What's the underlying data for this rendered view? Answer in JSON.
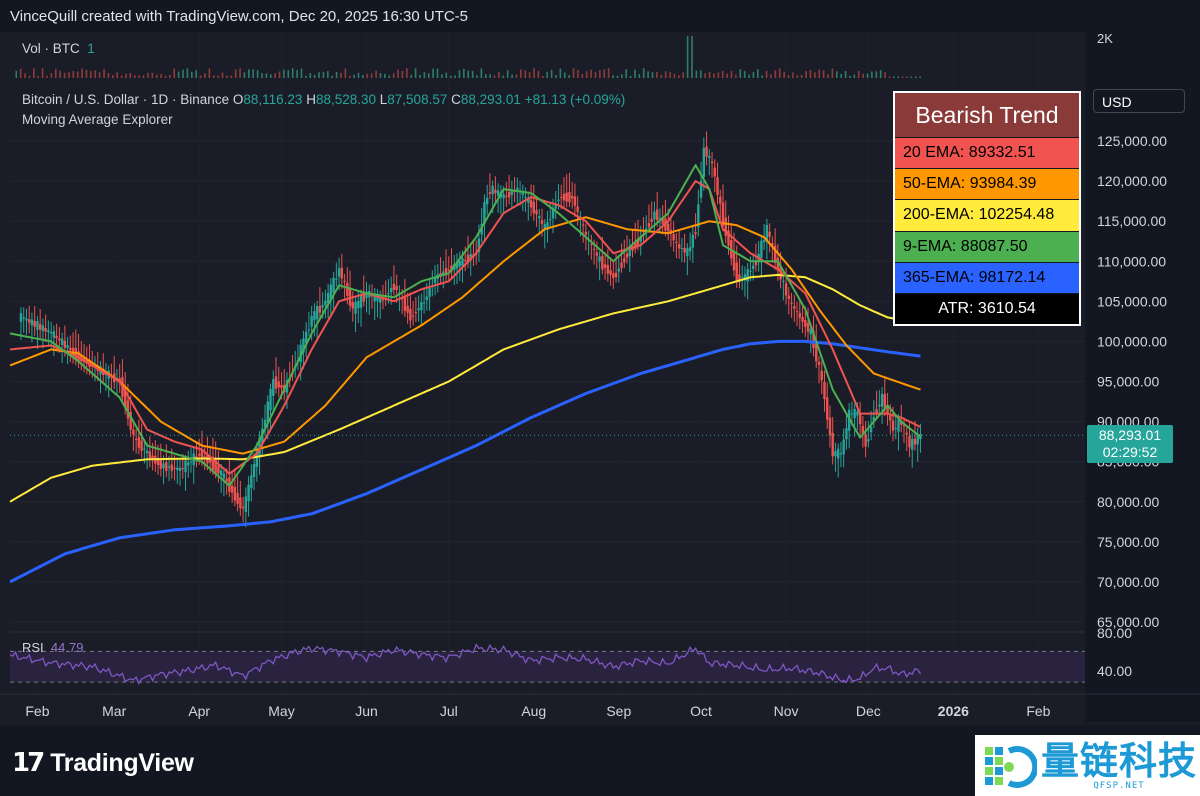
{
  "header": {
    "title": "VinceQuill created with TradingView.com, Dec 20, 2025 16:30 UTC-5"
  },
  "volume_legend": {
    "label": "Vol · BTC",
    "value": "1",
    "axis_label": "2K"
  },
  "symbol_legend": {
    "name": "Bitcoin / U.S. Dollar · 1D · Binance",
    "open_label": "O",
    "open": "88,116.23",
    "high_label": "H",
    "high": "88,528.30",
    "low_label": "L",
    "low": "87,508.57",
    "close_label": "C",
    "close": "88,293.01",
    "change": "+81.13 (+0.09%)",
    "indicator": "Moving Average Explorer"
  },
  "currency_button": "USD",
  "current_price": {
    "price": "88,293.01",
    "countdown": "02:29:52",
    "value": 88293.01
  },
  "ema_table": {
    "title": "Bearish Trend",
    "rows": [
      {
        "text": "20 EMA: 89332.51",
        "color": "#f05350"
      },
      {
        "text": "50-EMA: 93984.39",
        "color": "#ff9800"
      },
      {
        "text": "200-EMA: 102254.48",
        "color": "#ffeb3b"
      },
      {
        "text": "9-EMA: 88087.50",
        "color": "#4caf50"
      },
      {
        "text": "365-EMA: 98172.14",
        "color": "#2962ff"
      }
    ],
    "atr": "ATR: 3610.54",
    "title_color": "#8b3a3a",
    "atr_color": "#000000"
  },
  "rsi": {
    "label": "RSI",
    "value": "44.79",
    "ticks": [
      "80.00",
      "40.00"
    ],
    "color": "#7e57c2"
  },
  "branding": {
    "logo_text": "TradingView",
    "watermark_cn": "量链科技",
    "watermark_url": "QFSP.NET"
  },
  "chart_data": {
    "type": "line",
    "title": "",
    "ylabel": "",
    "ylim": [
      63000,
      128000
    ],
    "y_ticks": [
      65000,
      70000,
      75000,
      80000,
      85000,
      90000,
      95000,
      100000,
      105000,
      110000,
      115000,
      120000,
      125000
    ],
    "y_tick_labels": [
      "65,000.00",
      "70,000.00",
      "75,000.00",
      "80,000.00",
      "85,000.00",
      "90,000.00",
      "95,000.00",
      "100,000.00",
      "105,000.00",
      "110,000.00",
      "115,000.00",
      "120,000.00",
      "125,000.00"
    ],
    "x_months": [
      "Feb",
      "Mar",
      "Apr",
      "May",
      "Jun",
      "Jul",
      "Aug",
      "Sep",
      "Oct",
      "Nov",
      "Dec",
      "2026",
      "Feb"
    ],
    "x_month_days": [
      0,
      28,
      59,
      89,
      120,
      150,
      181,
      212,
      242,
      273,
      303,
      334,
      365
    ],
    "x_range_days": [
      -10,
      382
    ],
    "last_day": 322,
    "price": {
      "days": [
        -6,
        5,
        15,
        22,
        30,
        35,
        40,
        45,
        52,
        59,
        63,
        68,
        75,
        80,
        86,
        90,
        95,
        100,
        105,
        110,
        115,
        120,
        125,
        130,
        136,
        141,
        145,
        150,
        155,
        160,
        163,
        165,
        170,
        175,
        180,
        185,
        190,
        195,
        200,
        205,
        210,
        215,
        220,
        225,
        230,
        233,
        237,
        240,
        243,
        246,
        250,
        255,
        258,
        262,
        266,
        270,
        274,
        278,
        282,
        286,
        290,
        293,
        296,
        299,
        302,
        305,
        308,
        312,
        315,
        318,
        322
      ],
      "values": [
        103000,
        101000,
        98000,
        96500,
        95000,
        88000,
        86000,
        84500,
        84000,
        86000,
        85000,
        83000,
        79000,
        86000,
        95000,
        94000,
        98000,
        103000,
        105000,
        109000,
        104000,
        106000,
        105000,
        107000,
        103000,
        105000,
        108000,
        109000,
        110000,
        111000,
        117000,
        119000,
        118000,
        119000,
        117000,
        114000,
        118000,
        118000,
        113000,
        110000,
        108000,
        111000,
        113000,
        116000,
        114000,
        112000,
        111000,
        114000,
        124000,
        122000,
        115000,
        108000,
        108000,
        110000,
        114000,
        109000,
        105000,
        103000,
        101000,
        95000,
        86000,
        86000,
        91000,
        91000,
        87000,
        91000,
        93000,
        89000,
        90000,
        87000,
        88293
      ]
    },
    "series": [
      {
        "name": "365-EMA",
        "color": "#2962ff",
        "days": [
          -10,
          10,
          30,
          50,
          70,
          85,
          100,
          120,
          140,
          160,
          180,
          200,
          220,
          235,
          250,
          260,
          270,
          280,
          290,
          300,
          310,
          322
        ],
        "values": [
          70000,
          73500,
          75500,
          76500,
          77000,
          77500,
          78500,
          81000,
          84000,
          87000,
          90500,
          93500,
          96000,
          97500,
          99000,
          99700,
          100000,
          100000,
          99700,
          99200,
          98700,
          98172
        ]
      },
      {
        "name": "200-EMA",
        "color": "#ffeb3b",
        "days": [
          -10,
          5,
          20,
          40,
          60,
          75,
          90,
          110,
          130,
          150,
          170,
          190,
          210,
          230,
          245,
          260,
          270,
          280,
          290,
          300,
          310,
          322
        ],
        "values": [
          80000,
          83000,
          84500,
          85300,
          85400,
          85300,
          86200,
          89000,
          92000,
          95000,
          99000,
          101500,
          103500,
          105000,
          106500,
          108000,
          108300,
          108000,
          106500,
          104500,
          103000,
          102254
        ]
      },
      {
        "name": "50-EMA",
        "color": "#ff9800",
        "days": [
          -10,
          5,
          15,
          30,
          45,
          60,
          75,
          90,
          105,
          120,
          140,
          155,
          170,
          185,
          200,
          215,
          230,
          245,
          255,
          265,
          275,
          285,
          295,
          305,
          315,
          322
        ],
        "values": [
          97000,
          99000,
          98500,
          95000,
          90000,
          87000,
          86000,
          87500,
          92000,
          98000,
          102000,
          105500,
          110000,
          114000,
          115500,
          114000,
          113500,
          115000,
          114500,
          113000,
          109000,
          104000,
          99500,
          96000,
          94800,
          93984
        ]
      },
      {
        "name": "20 EMA",
        "color": "#f05350",
        "days": [
          -10,
          5,
          15,
          30,
          40,
          50,
          60,
          70,
          80,
          90,
          100,
          110,
          120,
          130,
          140,
          150,
          160,
          170,
          180,
          190,
          200,
          210,
          220,
          230,
          240,
          245,
          250,
          260,
          270,
          280,
          290,
          300,
          310,
          315,
          322
        ],
        "values": [
          99000,
          99500,
          98000,
          95000,
          89000,
          87500,
          86500,
          83500,
          86000,
          92000,
          99000,
          105000,
          106000,
          105000,
          106500,
          107500,
          111000,
          116000,
          118000,
          117000,
          115000,
          111000,
          112000,
          115000,
          120000,
          119000,
          114000,
          111000,
          109000,
          106000,
          99000,
          91000,
          91000,
          90500,
          89332
        ]
      },
      {
        "name": "9-EMA",
        "color": "#4caf50",
        "days": [
          -10,
          5,
          15,
          30,
          40,
          50,
          60,
          70,
          80,
          90,
          100,
          110,
          120,
          130,
          140,
          150,
          160,
          170,
          180,
          190,
          200,
          210,
          220,
          230,
          240,
          245,
          250,
          260,
          270,
          280,
          290,
          300,
          310,
          315,
          322
        ],
        "values": [
          101000,
          100000,
          97500,
          93000,
          87000,
          86000,
          85000,
          82000,
          87000,
          94000,
          101000,
          107000,
          106000,
          105500,
          107500,
          108500,
          113000,
          119000,
          118500,
          116000,
          113000,
          110000,
          113000,
          116000,
          122000,
          119000,
          112000,
          110000,
          110000,
          104000,
          94000,
          88000,
          92000,
          90000,
          88087
        ]
      }
    ],
    "volume": {
      "ylim": [
        0,
        2000
      ]
    },
    "rsi": {
      "ylim": [
        25,
        90
      ],
      "bands": [
        70,
        30
      ],
      "days": [
        -10,
        5,
        20,
        35,
        45,
        55,
        65,
        75,
        85,
        95,
        100,
        110,
        120,
        130,
        140,
        150,
        160,
        170,
        180,
        190,
        200,
        210,
        220,
        230,
        240,
        245,
        255,
        265,
        275,
        285,
        290,
        295,
        300,
        305,
        310,
        315,
        322
      ],
      "values": [
        65,
        55,
        50,
        32,
        40,
        45,
        52,
        38,
        58,
        70,
        74,
        70,
        62,
        72,
        66,
        62,
        74,
        72,
        58,
        62,
        60,
        50,
        58,
        54,
        74,
        55,
        52,
        46,
        48,
        42,
        36,
        32,
        35,
        48,
        48,
        40,
        44.79
      ]
    }
  }
}
